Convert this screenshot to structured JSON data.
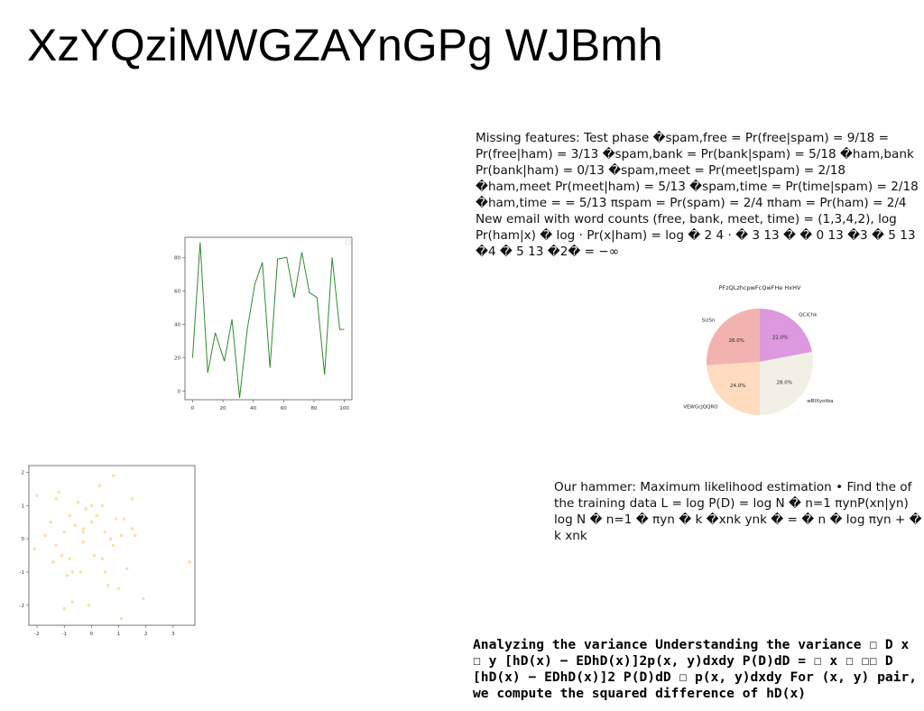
{
  "slide": {
    "title": "XzYQziMWGZAYnGPg WJBmh",
    "text_blocks": [
      "Missing features: Test phase �spam,free = Pr(free|spam) = 9/18 = Pr(free|ham) = 3/13 �spam,bank = Pr(bank|spam) = 5/18 �ham,bank Pr(bank|ham) = 0/13 �spam,meet = Pr(meet|spam) = 2/18 �ham,meet Pr(meet|ham) = 5/13 �spam,time = Pr(time|spam) = 2/18 �ham,time = = 5/13 πspam = Pr(spam) = 2/4 πham = Pr(ham) = 2/4 New email with word counts (free, bank, meet, time) = (1,3,4,2), log Pr(ham|x) � log · Pr(x|ham) = log � 2 4 · � 3 13 � � 0 13 �3 � 5 13 �4 � 5 13 �2� = −∞",
      "Our hammer: Maximum likelihood estimation • Find the of the training data L = log P(D) = log N � n=1 πynP(xn|yn) log N � n=1 � πyn � k �xnk ynk � = � n � log πyn + � k xnk",
      "Analyzing the variance Understanding the variance ☐ D x ☐ y [hD(x) − EDhD(x)]2p(x, y)dxdy P(D)dD = ☐ x ☐ ☐☐ D [hD(x) − EDhD(x)]2 P(D)dD ☐ p(x, y)dxdy For (x, y) pair, we compute the squared difference of hD(x)"
    ]
  },
  "chart_data": [
    {
      "type": "line",
      "title": "",
      "xlabel": "",
      "ylabel": "",
      "xlim": [
        -5,
        105
      ],
      "ylim": [
        -5,
        92
      ],
      "xticks": [
        0,
        20,
        40,
        60,
        80,
        100
      ],
      "yticks": [
        0,
        20,
        40,
        60,
        80
      ],
      "color": "#2e8b2e",
      "legend": "top-right (empty)",
      "grid": false,
      "x": [
        0,
        5,
        10,
        15,
        21,
        26,
        31,
        36,
        41,
        46,
        51,
        56,
        62,
        67,
        72,
        77,
        82,
        87,
        92,
        97,
        100
      ],
      "y": [
        20,
        89,
        11,
        35,
        18,
        43,
        -4,
        37,
        64,
        77,
        14,
        79,
        80,
        56,
        83,
        59,
        56,
        10,
        80,
        37,
        37
      ]
    },
    {
      "type": "pie",
      "title": "PFzQLzhcpwFcQwFHe HxHV",
      "slices": [
        {
          "label": "QCiChk",
          "value": 22.0,
          "pct_label": "22.0%",
          "color": "#dd99dd"
        },
        {
          "label": "wBlXyotba",
          "value": 28.0,
          "pct_label": "28.0%",
          "color": "#f2f0e6"
        },
        {
          "label": "VEWGcJQQRO",
          "value": 24.0,
          "pct_label": "24.0%",
          "color": "#ffdbc0"
        },
        {
          "label": "SizSn",
          "value": 26.0,
          "pct_label": "26.0%",
          "color": "#f2b3b0"
        }
      ],
      "start_angle_deg": 90,
      "direction": "clockwise"
    },
    {
      "type": "scatter",
      "title": "",
      "xlabel": "",
      "ylabel": "",
      "xlim": [
        -2.3,
        3.8
      ],
      "ylim": [
        -2.6,
        2.2
      ],
      "xticks": [
        -2,
        -1,
        0,
        1,
        2,
        3
      ],
      "yticks": [
        -2,
        -1,
        0,
        1,
        2
      ],
      "color": "#fde2b0",
      "grid": false,
      "x": [
        -2.1,
        -2.0,
        -1.7,
        -1.5,
        -1.3,
        -1.4,
        -1.3,
        -1.2,
        -1.1,
        -1.0,
        -0.9,
        -0.8,
        -0.7,
        -0.7,
        -0.6,
        -0.5,
        -0.4,
        -0.3,
        -0.3,
        -0.2,
        -0.1,
        0.0,
        0.0,
        0.1,
        0.2,
        0.3,
        0.4,
        0.4,
        0.5,
        0.6,
        0.7,
        0.8,
        0.9,
        1.0,
        1.1,
        1.1,
        1.2,
        1.3,
        1.5,
        1.5,
        1.6,
        1.9,
        3.6,
        -0.3,
        0.8,
        0.5,
        -1.0,
        -0.8
      ],
      "y": [
        -0.3,
        1.3,
        0.1,
        0.5,
        -0.2,
        -0.7,
        1.2,
        1.4,
        -0.5,
        0.2,
        -1.1,
        0.7,
        -1.0,
        -1.9,
        0.4,
        1.1,
        -1.0,
        0.3,
        -0.1,
        0.9,
        -2.0,
        1.0,
        0.5,
        -0.5,
        0.7,
        1.6,
        1.0,
        -0.6,
        0.2,
        -1.4,
        0.0,
        1.9,
        0.6,
        -1.5,
        -2.4,
        0.1,
        0.6,
        -0.9,
        0.3,
        1.2,
        0.1,
        -1.8,
        -0.7,
        0.2,
        -0.2,
        -1.0,
        -2.1,
        -0.6
      ]
    }
  ]
}
